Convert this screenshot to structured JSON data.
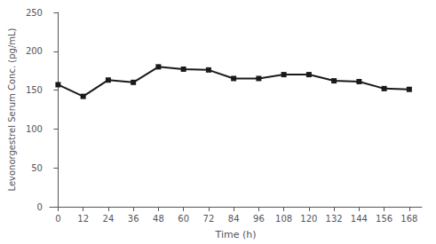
{
  "chart_data": {
    "type": "line",
    "x": [
      0,
      12,
      24,
      36,
      48,
      60,
      72,
      84,
      96,
      108,
      120,
      132,
      144,
      156,
      168
    ],
    "values": [
      157,
      142,
      163,
      160,
      180,
      177,
      176,
      165,
      165,
      170,
      170,
      162,
      161,
      152,
      151
    ],
    "xlabel": "Time (h)",
    "ylabel": "Levonorgestrel Serum Conc. (pg/mL)",
    "xlim": [
      -4,
      174
    ],
    "xticks": [
      0,
      12,
      24,
      36,
      48,
      60,
      72,
      84,
      96,
      108,
      120,
      132,
      144,
      156,
      168
    ],
    "ylim": [
      0,
      250
    ],
    "yticks": [
      0,
      50,
      100,
      150,
      200,
      250
    ],
    "color": "#1a1a1a",
    "marker": "square",
    "grid": false
  }
}
